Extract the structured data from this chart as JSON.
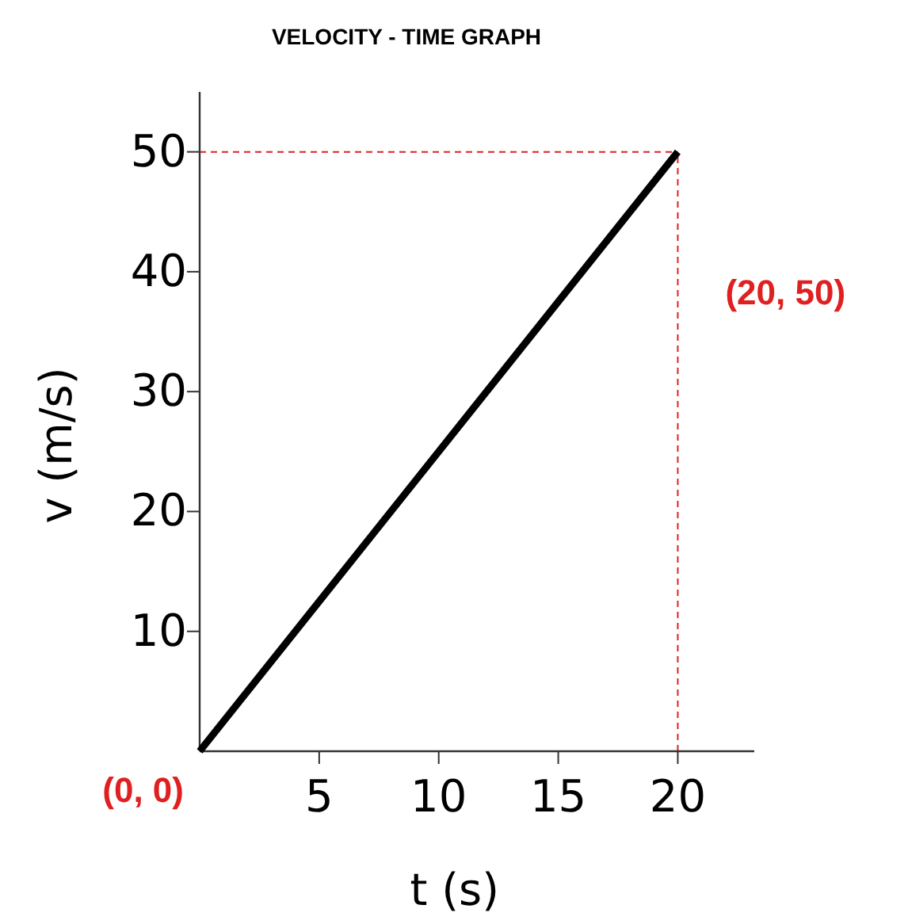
{
  "chart_data": {
    "type": "line",
    "title": "VELOCITY - TIME GRAPH",
    "xlabel": "t (s)",
    "ylabel": "v (m/s)",
    "x": [
      0,
      20
    ],
    "series": [
      {
        "color": "#000000",
        "values": [
          0,
          50
        ]
      }
    ],
    "xlim": [
      0,
      23.2
    ],
    "ylim": [
      0,
      55
    ],
    "xticks": [
      5,
      10,
      15,
      20
    ],
    "yticks": [
      10,
      20,
      30,
      40,
      50
    ],
    "grid": false,
    "marker": "none",
    "line_style": "solid",
    "ref_lines": [
      {
        "axis": "y",
        "value": 50,
        "color": "#e02020",
        "line_style": "dashed"
      },
      {
        "axis": "x",
        "value": 20,
        "color": "#e02020",
        "line_style": "dashed"
      }
    ],
    "annotations": [
      {
        "text": "(0, 0)",
        "x": 0,
        "y": 0
      },
      "(20, 50)"
    ]
  }
}
